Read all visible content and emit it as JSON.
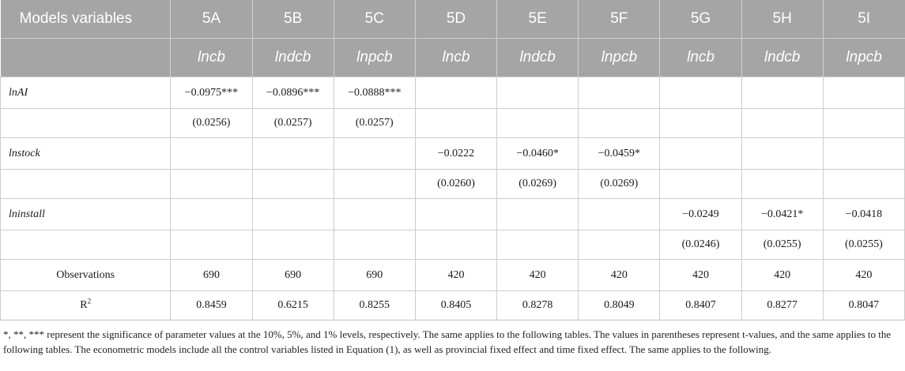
{
  "header": {
    "title": "Models variables",
    "models": [
      "5A",
      "5B",
      "5C",
      "5D",
      "5E",
      "5F",
      "5G",
      "5H",
      "5I"
    ],
    "dependents": [
      "lncb",
      "lndcb",
      "lnpcb",
      "lncb",
      "lndcb",
      "lnpcb",
      "lncb",
      "lndcb",
      "lnpcb"
    ]
  },
  "rows": [
    {
      "label": "lnAI",
      "kind": "var",
      "cells": [
        "−0.0975***",
        "−0.0896***",
        "−0.0888***",
        "",
        "",
        "",
        "",
        "",
        ""
      ]
    },
    {
      "label": "",
      "kind": "se",
      "cells": [
        "(0.0256)",
        "(0.0257)",
        "(0.0257)",
        "",
        "",
        "",
        "",
        "",
        ""
      ]
    },
    {
      "label": "lnstock",
      "kind": "var",
      "cells": [
        "",
        "",
        "",
        "−0.0222",
        "−0.0460*",
        "−0.0459*",
        "",
        "",
        ""
      ]
    },
    {
      "label": "",
      "kind": "se",
      "cells": [
        "",
        "",
        "",
        "(0.0260)",
        "(0.0269)",
        "(0.0269)",
        "",
        "",
        ""
      ]
    },
    {
      "label": "lninstall",
      "kind": "var",
      "cells": [
        "",
        "",
        "",
        "",
        "",
        "",
        "−0.0249",
        "−0.0421*",
        "−0.0418"
      ]
    },
    {
      "label": "",
      "kind": "se",
      "cells": [
        "",
        "",
        "",
        "",
        "",
        "",
        "(0.0246)",
        "(0.0255)",
        "(0.0255)"
      ]
    },
    {
      "label": "Observations",
      "kind": "stat",
      "cells": [
        "690",
        "690",
        "690",
        "420",
        "420",
        "420",
        "420",
        "420",
        "420"
      ]
    },
    {
      "label": "R",
      "label_sup": "2",
      "kind": "stat",
      "cells": [
        "0.8459",
        "0.6215",
        "0.8255",
        "0.8405",
        "0.8278",
        "0.8049",
        "0.8407",
        "0.8277",
        "0.8047"
      ]
    }
  ],
  "footnote": "*, **, *** represent the significance of parameter values at the 10%, 5%, and 1% levels, respectively. The same applies to the following tables. The values in parentheses represent t-values, and the same applies to the following tables. The econometric models include all the control variables listed in Equation (1), as well as provincial fixed effect and time fixed effect. The same applies to the following."
}
